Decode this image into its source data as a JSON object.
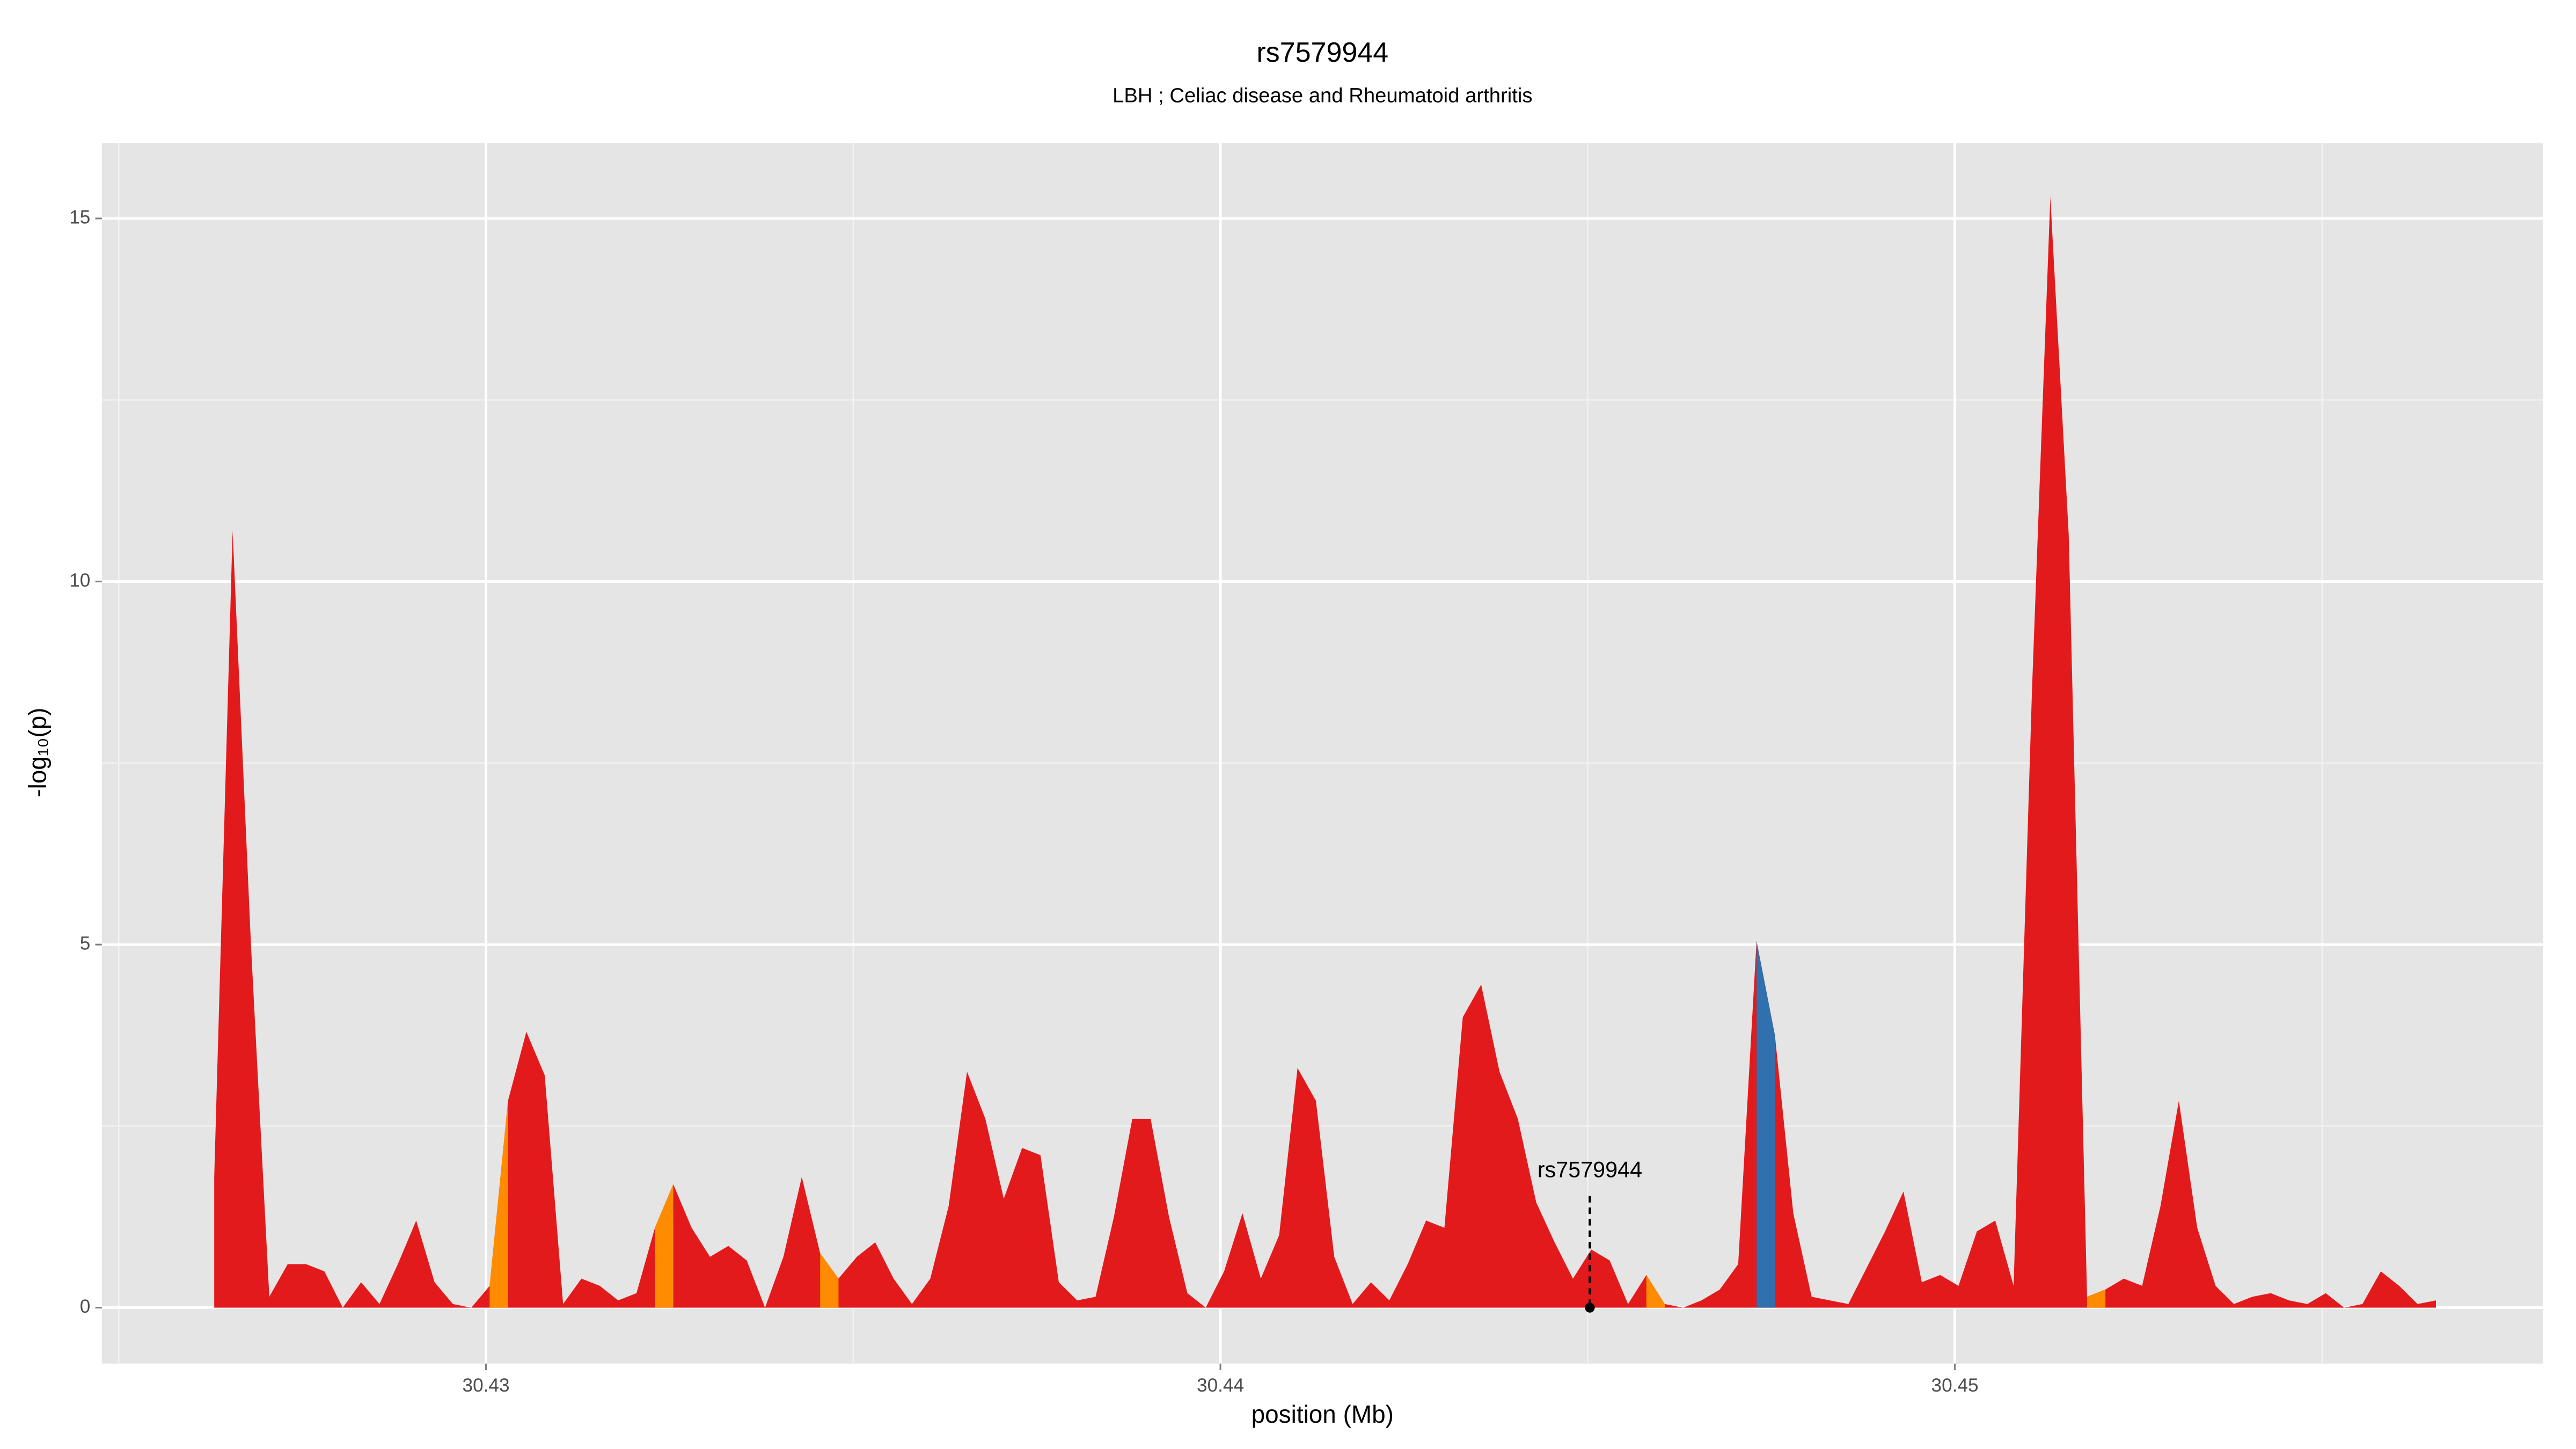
{
  "chart_data": {
    "type": "area",
    "title": "rs7579944",
    "subtitle": "LBH ; Celiac disease and Rheumatoid arthritis",
    "xlabel": "position (Mb)",
    "ylabel": "-log₁₀(p)",
    "xlim": [
      30.42477,
      30.45801
    ],
    "ylim": [
      -0.77,
      16.04
    ],
    "xticks": [
      30.43,
      30.44,
      30.45
    ],
    "yticks": [
      0,
      5,
      10,
      15
    ],
    "x_minor_grid": [
      30.425,
      30.435,
      30.445,
      30.455
    ],
    "y_minor_grid": [
      2.5,
      7.5,
      12.5
    ],
    "grid": true,
    "x": [
      30.4263,
      30.42655,
      30.4268,
      30.42705,
      30.4273,
      30.42755,
      30.4278,
      30.42805,
      30.4283,
      30.42855,
      30.4288,
      30.42905,
      30.4293,
      30.42955,
      30.4298,
      30.43005,
      30.4303,
      30.43055,
      30.4308,
      30.43105,
      30.4313,
      30.43155,
      30.4318,
      30.43205,
      30.4323,
      30.43255,
      30.4328,
      30.43305,
      30.4333,
      30.43355,
      30.4338,
      30.43405,
      30.4343,
      30.43455,
      30.4348,
      30.43505,
      30.4353,
      30.43555,
      30.4358,
      30.43605,
      30.4363,
      30.43655,
      30.4368,
      30.43705,
      30.4373,
      30.43755,
      30.4378,
      30.43805,
      30.4383,
      30.43855,
      30.4388,
      30.43905,
      30.4393,
      30.43955,
      30.4398,
      30.44005,
      30.4403,
      30.44055,
      30.4408,
      30.44105,
      30.4413,
      30.44155,
      30.4418,
      30.44205,
      30.4423,
      30.44255,
      30.4428,
      30.44305,
      30.4433,
      30.44355,
      30.4438,
      30.44405,
      30.4443,
      30.44455,
      30.4448,
      30.44505,
      30.4453,
      30.44555,
      30.4458,
      30.44605,
      30.4463,
      30.44655,
      30.4468,
      30.44705,
      30.4473,
      30.44755,
      30.4478,
      30.44805,
      30.4483,
      30.44855,
      30.4488,
      30.44905,
      30.4493,
      30.44955,
      30.4498,
      30.45005,
      30.4503,
      30.45055,
      30.4508,
      30.45105,
      30.4513,
      30.45155,
      30.4518,
      30.45205,
      30.4523,
      30.45255,
      30.4528,
      30.45305,
      30.4533,
      30.45355,
      30.4538,
      30.45405,
      30.4543,
      30.45455,
      30.4548,
      30.45505,
      30.4553,
      30.45555,
      30.4558,
      30.45605,
      30.4563,
      30.45655
    ],
    "series": [
      {
        "color": "#e31a1c",
        "values": [
          1.8,
          10.7,
          5.0,
          0.15,
          0.6,
          0.6,
          0.5,
          0,
          0.35,
          0.05,
          0.6,
          1.2,
          0.35,
          0.05,
          0,
          0.3,
          2.85,
          3.8,
          3.2,
          0.05,
          0.4,
          0.3,
          0.1,
          0.2,
          1.1,
          1.7,
          1.1,
          0.7,
          0.85,
          0.65,
          0,
          0.7,
          1.8,
          0.75,
          0.4,
          0.7,
          0.9,
          0.4,
          0.05,
          0.4,
          1.4,
          3.25,
          2.6,
          1.5,
          2.2,
          2.1,
          0.35,
          0.1,
          0.15,
          1.25,
          2.6,
          2.6,
          1.25,
          0.2,
          0,
          0.5,
          1.3,
          0.4,
          1.0,
          3.3,
          2.85,
          0.7,
          0.05,
          0.35,
          0.1,
          0.6,
          1.2,
          1.1,
          4.0,
          4.45,
          3.25,
          2.6,
          1.45,
          0.9,
          0.4,
          0.8,
          0.65,
          0.05,
          0.45,
          0.05,
          0,
          0.1,
          0.25,
          0.6,
          5.05,
          3.75,
          1.3,
          0.15,
          0.1,
          0.05,
          0.55,
          1.05,
          1.6,
          0.35,
          0.45,
          0.3,
          1.05,
          1.2,
          0.3,
          8.5,
          15.3,
          10.65,
          0.15,
          0.25,
          0.4,
          0.3,
          1.4,
          2.85,
          1.1,
          0.3,
          0.05,
          0.15,
          0.2,
          0.1,
          0.05,
          0.2,
          0,
          0.05,
          0.5,
          0.3,
          0.05,
          0.1
        ]
      },
      {
        "color": "#ff8c00",
        "values": [
          null,
          null,
          null,
          null,
          null,
          null,
          null,
          null,
          null,
          null,
          null,
          null,
          null,
          null,
          null,
          0.3,
          2.85,
          null,
          null,
          null,
          null,
          null,
          null,
          null,
          1.1,
          1.7,
          null,
          null,
          null,
          null,
          null,
          null,
          null,
          0.75,
          0.4,
          null,
          null,
          null,
          null,
          null,
          null,
          null,
          null,
          null,
          null,
          null,
          null,
          null,
          null,
          null,
          null,
          null,
          null,
          null,
          null,
          null,
          null,
          null,
          null,
          null,
          null,
          null,
          null,
          null,
          null,
          null,
          null,
          null,
          null,
          null,
          null,
          null,
          null,
          null,
          null,
          null,
          null,
          null,
          0.45,
          0.05,
          null,
          null,
          null,
          null,
          null,
          null,
          null,
          null,
          null,
          null,
          null,
          null,
          null,
          null,
          null,
          null,
          null,
          null,
          null,
          null,
          null,
          null,
          0.15,
          0.25,
          null,
          null,
          null,
          null,
          null,
          null,
          null,
          null,
          null,
          null,
          null,
          null,
          null,
          null,
          null,
          null,
          null,
          null
        ]
      },
      {
        "color": "#3070ae",
        "values": [
          null,
          null,
          null,
          null,
          null,
          null,
          null,
          null,
          null,
          null,
          null,
          null,
          null,
          null,
          null,
          null,
          null,
          null,
          null,
          null,
          null,
          null,
          null,
          null,
          null,
          null,
          null,
          null,
          null,
          null,
          null,
          null,
          null,
          null,
          null,
          null,
          null,
          null,
          null,
          null,
          null,
          null,
          null,
          null,
          null,
          null,
          null,
          null,
          null,
          null,
          null,
          null,
          null,
          null,
          null,
          null,
          null,
          null,
          null,
          null,
          null,
          null,
          null,
          null,
          null,
          null,
          null,
          null,
          null,
          null,
          null,
          null,
          null,
          null,
          null,
          null,
          null,
          null,
          null,
          null,
          null,
          null,
          null,
          null,
          5.05,
          3.75,
          null,
          null,
          null,
          null,
          null,
          null,
          null,
          null,
          null,
          null,
          null,
          null,
          null,
          null,
          null,
          null,
          null,
          null,
          null,
          null,
          null,
          null,
          null,
          null,
          null,
          null,
          null,
          null,
          null,
          null,
          null,
          null,
          null,
          null,
          null,
          null
        ]
      }
    ],
    "annotations": [
      {
        "text": "rs7579944",
        "x": 30.44503,
        "y": 0
      }
    ]
  }
}
